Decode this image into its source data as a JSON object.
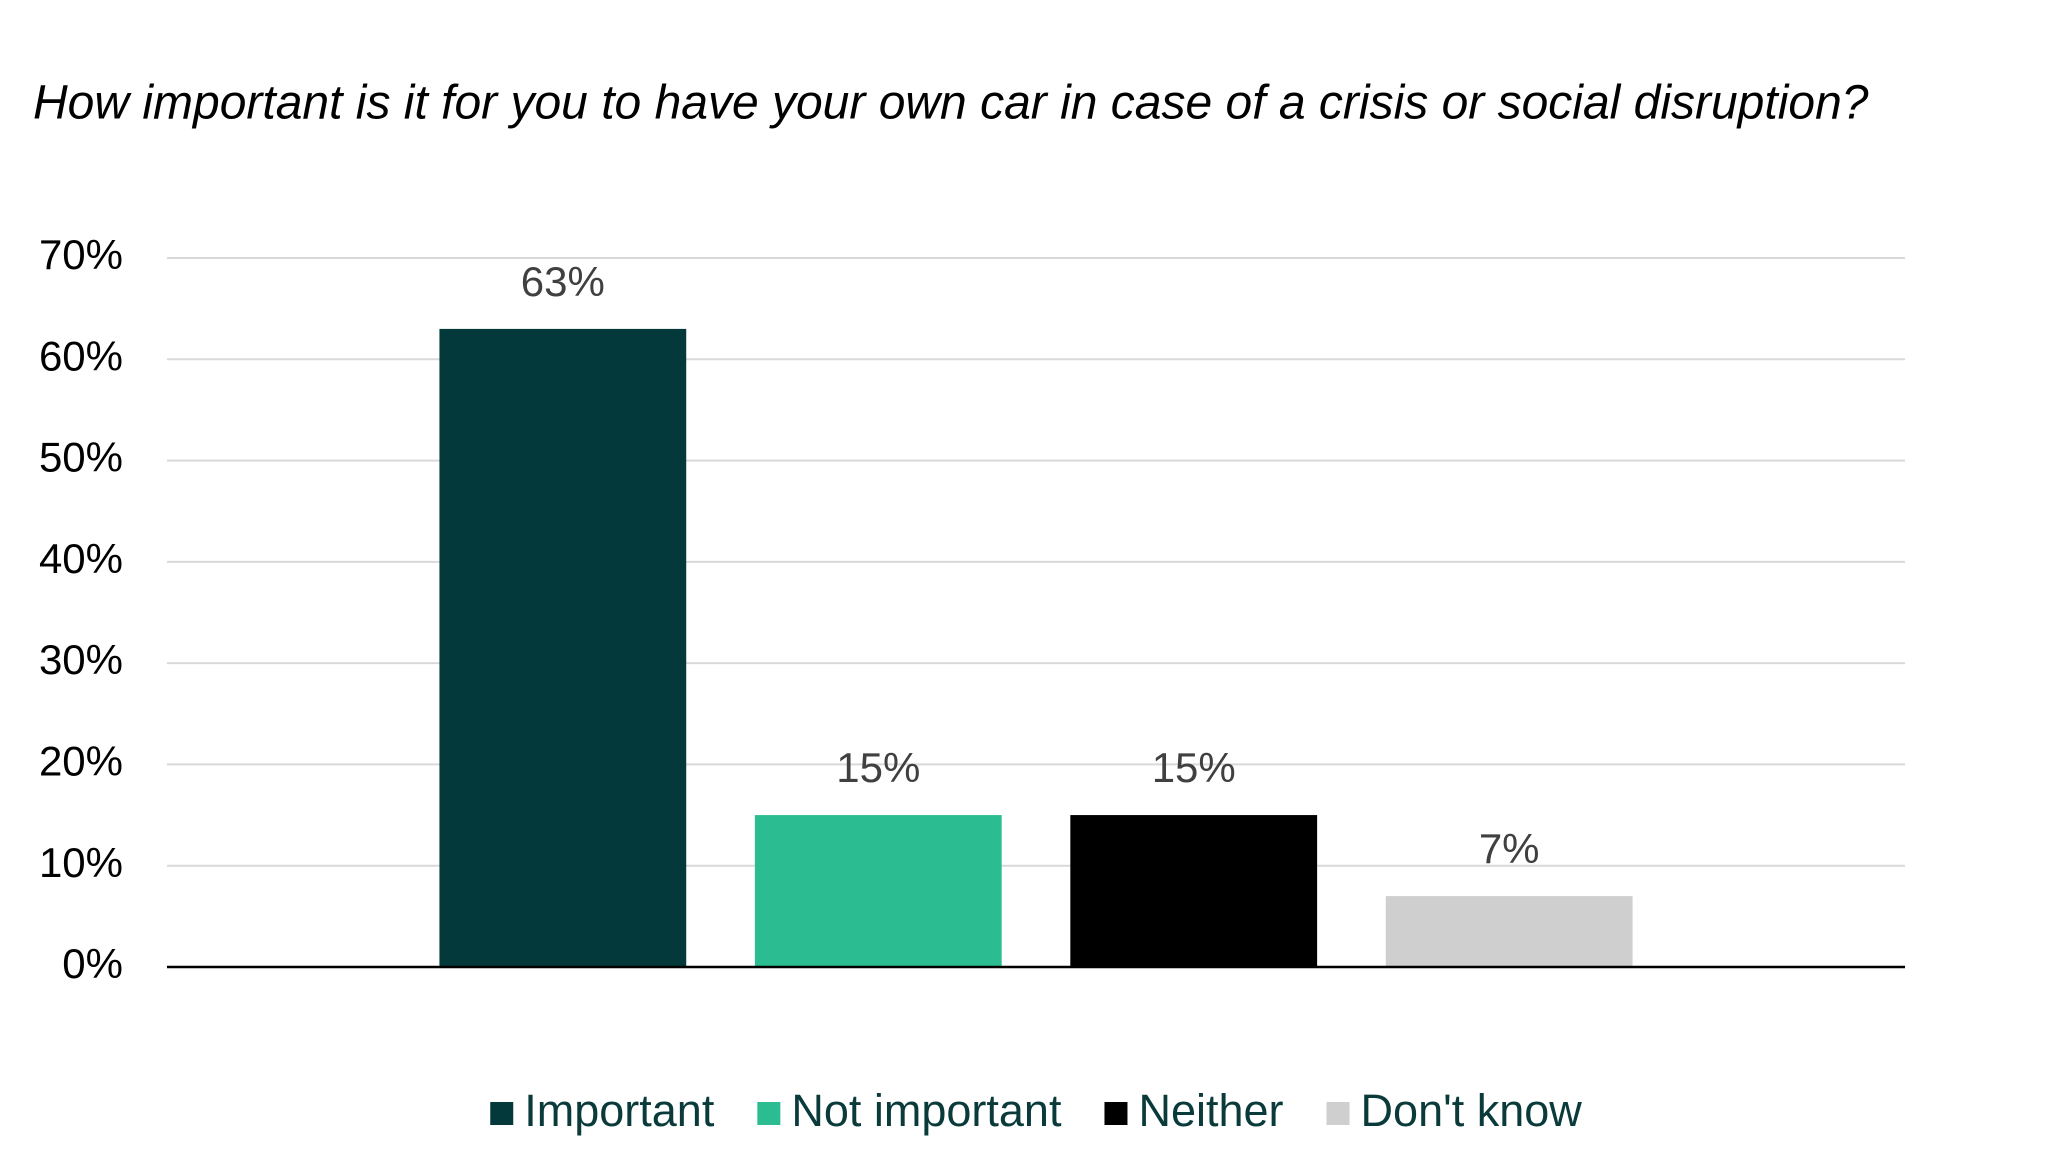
{
  "chart_data": {
    "type": "bar",
    "title": "How important is it for you to have your own car in case of a crisis or social disruption?",
    "categories": [
      null
    ],
    "series": [
      {
        "name": "Important",
        "color": "#04393c",
        "values": [
          63
        ],
        "value_labels": [
          "63%"
        ]
      },
      {
        "name": "Not important",
        "color": "#2bbd91",
        "values": [
          15
        ],
        "value_labels": [
          "15%"
        ]
      },
      {
        "name": "Neither",
        "color": "#000000",
        "values": [
          15
        ],
        "value_labels": [
          "15%"
        ]
      },
      {
        "name": "Don't know",
        "color": "#d0cfcf",
        "values": [
          7
        ],
        "value_labels": [
          "7%"
        ]
      }
    ],
    "ylim": [
      0,
      70
    ],
    "yticks": [
      {
        "value": 0,
        "label": "0%"
      },
      {
        "value": 10,
        "label": "10%"
      },
      {
        "value": 20,
        "label": "20%"
      },
      {
        "value": 30,
        "label": "30%"
      },
      {
        "value": 40,
        "label": "40%"
      },
      {
        "value": 50,
        "label": "50%"
      },
      {
        "value": 60,
        "label": "60%"
      },
      {
        "value": 70,
        "label": "70%"
      }
    ],
    "grid": true,
    "legend": "bottom"
  }
}
